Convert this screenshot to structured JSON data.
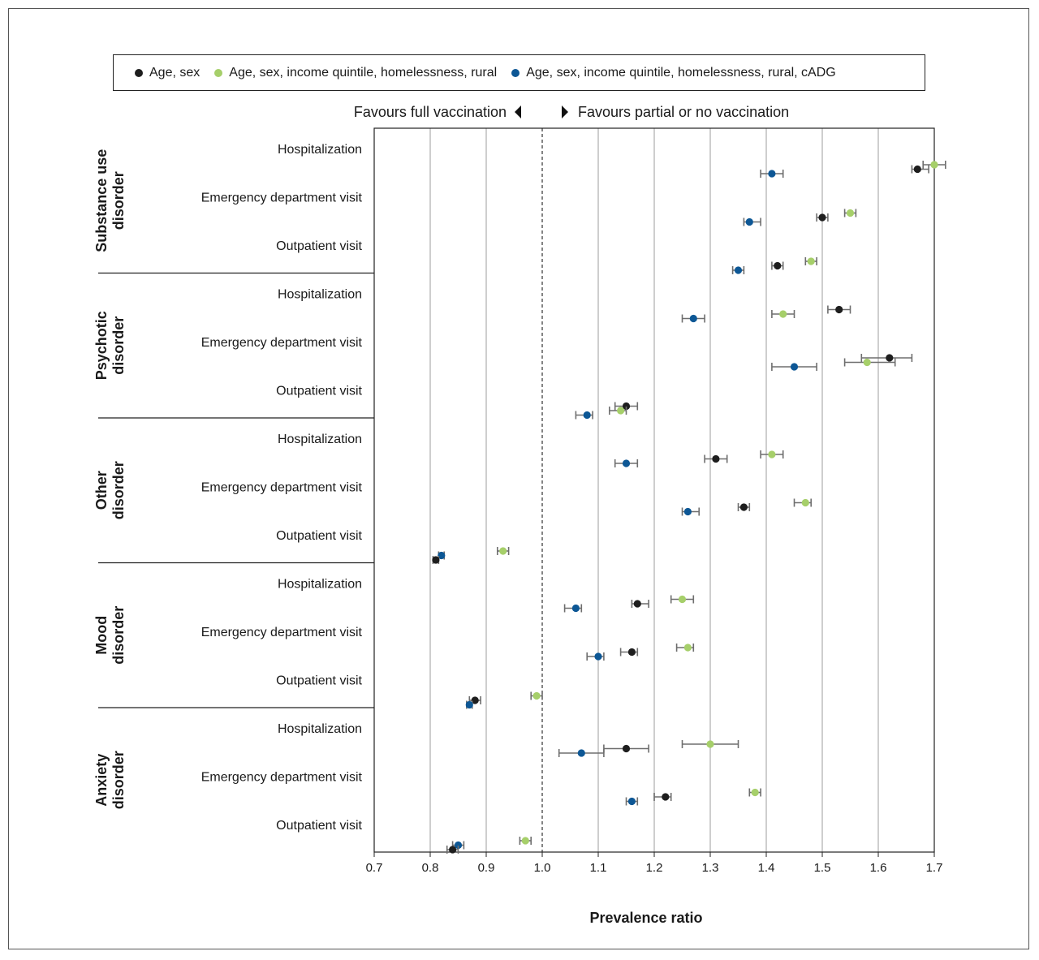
{
  "legend": [
    {
      "label": "Age, sex",
      "color": "#1e1e1e"
    },
    {
      "label": "Age, sex, income quintile, homelessness, rural",
      "color": "#a6cf6a"
    },
    {
      "label": "Age, sex, income quintile, homelessness, rural, cADG",
      "color": "#0d5795"
    }
  ],
  "favours": {
    "left": "Favours full vaccination",
    "right": "Favours partial or no vaccination"
  },
  "chart_data": {
    "type": "scatter",
    "xlabel": "Prevalence ratio",
    "xlim": [
      0.7,
      1.7
    ],
    "x_ticks": [
      "0.7",
      "0.8",
      "0.9",
      "1.0",
      "1.1",
      "1.2",
      "1.3",
      "1.4",
      "1.5",
      "1.6",
      "1.7"
    ],
    "reference_line": 1.0,
    "grid": true,
    "legend_position": "top",
    "series_names": [
      "Age, sex",
      "Age, sex, income quintile, homelessness, rural",
      "Age, sex, income quintile, homelessness, rural, cADG"
    ],
    "groups": [
      {
        "name": "Substance use disorder",
        "rows": [
          {
            "label": "Hospitalization",
            "estimates": [
              {
                "series": 0,
                "x": 1.67,
                "lo": 1.66,
                "hi": 1.69
              },
              {
                "series": 1,
                "x": 1.7,
                "lo": 1.68,
                "hi": 1.72
              },
              {
                "series": 2,
                "x": 1.41,
                "lo": 1.39,
                "hi": 1.43
              }
            ]
          },
          {
            "label": "Emergency department visit",
            "estimates": [
              {
                "series": 0,
                "x": 1.5,
                "lo": 1.49,
                "hi": 1.51
              },
              {
                "series": 1,
                "x": 1.55,
                "lo": 1.54,
                "hi": 1.56
              },
              {
                "series": 2,
                "x": 1.37,
                "lo": 1.36,
                "hi": 1.39
              }
            ]
          },
          {
            "label": "Outpatient visit",
            "estimates": [
              {
                "series": 0,
                "x": 1.42,
                "lo": 1.41,
                "hi": 1.43
              },
              {
                "series": 1,
                "x": 1.48,
                "lo": 1.47,
                "hi": 1.49
              },
              {
                "series": 2,
                "x": 1.35,
                "lo": 1.34,
                "hi": 1.36
              }
            ]
          }
        ]
      },
      {
        "name": "Psychotic disorder",
        "rows": [
          {
            "label": "Hospitalization",
            "estimates": [
              {
                "series": 0,
                "x": 1.53,
                "lo": 1.51,
                "hi": 1.55
              },
              {
                "series": 1,
                "x": 1.43,
                "lo": 1.41,
                "hi": 1.45
              },
              {
                "series": 2,
                "x": 1.27,
                "lo": 1.25,
                "hi": 1.29
              }
            ]
          },
          {
            "label": "Emergency department visit",
            "estimates": [
              {
                "series": 0,
                "x": 1.62,
                "lo": 1.57,
                "hi": 1.66
              },
              {
                "series": 1,
                "x": 1.58,
                "lo": 1.54,
                "hi": 1.63
              },
              {
                "series": 2,
                "x": 1.45,
                "lo": 1.41,
                "hi": 1.49
              }
            ]
          },
          {
            "label": "Outpatient visit",
            "estimates": [
              {
                "series": 0,
                "x": 1.15,
                "lo": 1.13,
                "hi": 1.17
              },
              {
                "series": 1,
                "x": 1.14,
                "lo": 1.12,
                "hi": 1.15
              },
              {
                "series": 2,
                "x": 1.08,
                "lo": 1.06,
                "hi": 1.09
              }
            ]
          }
        ]
      },
      {
        "name": "Other disorder",
        "rows": [
          {
            "label": "Hospitalization",
            "estimates": [
              {
                "series": 0,
                "x": 1.31,
                "lo": 1.29,
                "hi": 1.33
              },
              {
                "series": 1,
                "x": 1.41,
                "lo": 1.39,
                "hi": 1.43
              },
              {
                "series": 2,
                "x": 1.15,
                "lo": 1.13,
                "hi": 1.17
              }
            ]
          },
          {
            "label": "Emergency department visit",
            "estimates": [
              {
                "series": 0,
                "x": 1.36,
                "lo": 1.35,
                "hi": 1.37
              },
              {
                "series": 1,
                "x": 1.47,
                "lo": 1.45,
                "hi": 1.48
              },
              {
                "series": 2,
                "x": 1.26,
                "lo": 1.25,
                "hi": 1.28
              }
            ]
          },
          {
            "label": "Outpatient visit",
            "estimates": [
              {
                "series": 0,
                "x": 0.81,
                "lo": 0.805,
                "hi": 0.815
              },
              {
                "series": 1,
                "x": 0.93,
                "lo": 0.92,
                "hi": 0.94
              },
              {
                "series": 2,
                "x": 0.82,
                "lo": 0.815,
                "hi": 0.825
              }
            ]
          }
        ]
      },
      {
        "name": "Mood disorder",
        "rows": [
          {
            "label": "Hospitalization",
            "estimates": [
              {
                "series": 0,
                "x": 1.17,
                "lo": 1.16,
                "hi": 1.19
              },
              {
                "series": 1,
                "x": 1.25,
                "lo": 1.23,
                "hi": 1.27
              },
              {
                "series": 2,
                "x": 1.06,
                "lo": 1.04,
                "hi": 1.07
              }
            ]
          },
          {
            "label": "Emergency department visit",
            "estimates": [
              {
                "series": 0,
                "x": 1.16,
                "lo": 1.14,
                "hi": 1.17
              },
              {
                "series": 1,
                "x": 1.26,
                "lo": 1.24,
                "hi": 1.27
              },
              {
                "series": 2,
                "x": 1.1,
                "lo": 1.08,
                "hi": 1.11
              }
            ]
          },
          {
            "label": "Outpatient visit",
            "estimates": [
              {
                "series": 0,
                "x": 0.88,
                "lo": 0.87,
                "hi": 0.89
              },
              {
                "series": 1,
                "x": 0.99,
                "lo": 0.98,
                "hi": 1.0
              },
              {
                "series": 2,
                "x": 0.87,
                "lo": 0.865,
                "hi": 0.875
              }
            ]
          }
        ]
      },
      {
        "name": "Anxiety disorder",
        "rows": [
          {
            "label": "Hospitalization",
            "estimates": [
              {
                "series": 0,
                "x": 1.15,
                "lo": 1.11,
                "hi": 1.19
              },
              {
                "series": 1,
                "x": 1.3,
                "lo": 1.25,
                "hi": 1.35
              },
              {
                "series": 2,
                "x": 1.07,
                "lo": 1.03,
                "hi": 1.11
              }
            ]
          },
          {
            "label": "Emergency department visit",
            "estimates": [
              {
                "series": 0,
                "x": 1.22,
                "lo": 1.2,
                "hi": 1.23
              },
              {
                "series": 1,
                "x": 1.38,
                "lo": 1.37,
                "hi": 1.39
              },
              {
                "series": 2,
                "x": 1.16,
                "lo": 1.15,
                "hi": 1.17
              }
            ]
          },
          {
            "label": "Outpatient visit",
            "estimates": [
              {
                "series": 0,
                "x": 0.84,
                "lo": 0.83,
                "hi": 0.85
              },
              {
                "series": 1,
                "x": 0.97,
                "lo": 0.96,
                "hi": 0.98
              },
              {
                "series": 2,
                "x": 0.85,
                "lo": 0.84,
                "hi": 0.86
              }
            ]
          }
        ]
      }
    ]
  }
}
